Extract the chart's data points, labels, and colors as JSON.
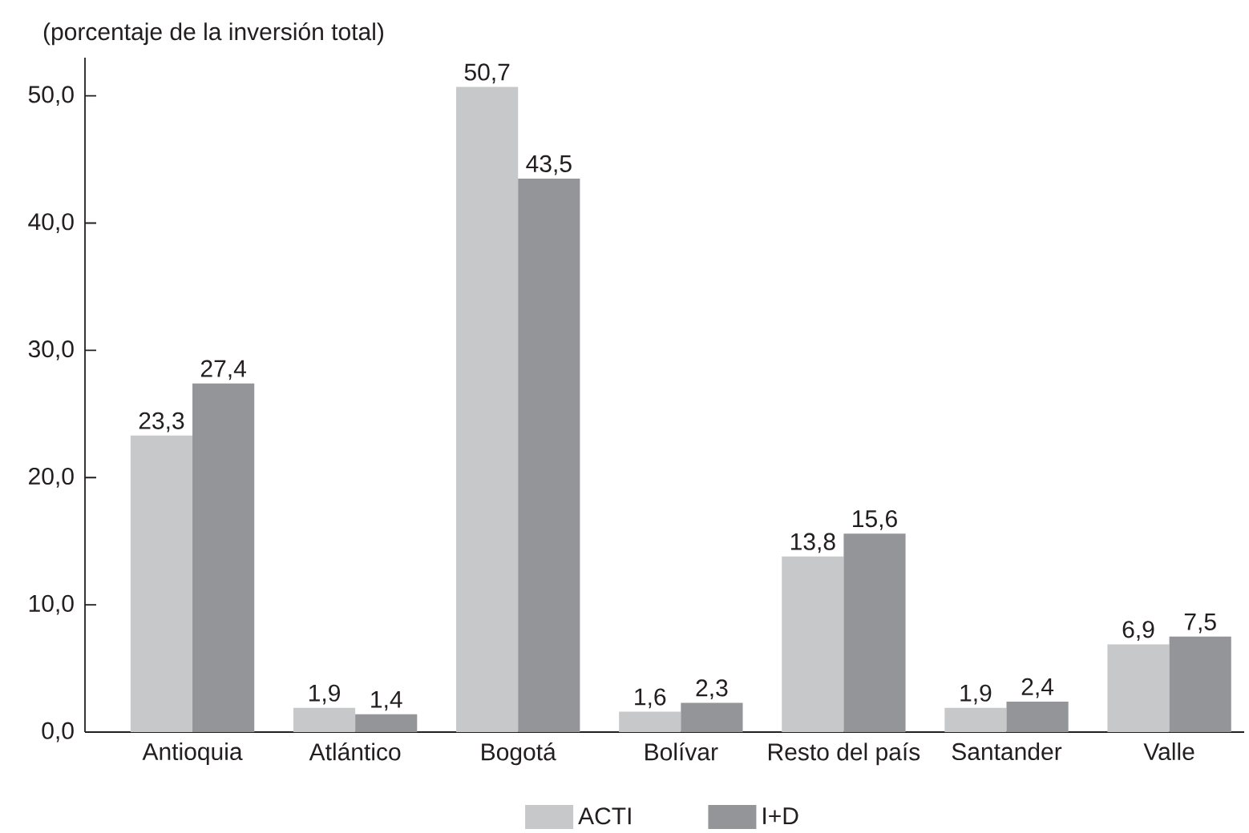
{
  "chart_data": {
    "type": "bar",
    "ylabel": "(porcentaje de la inversión total)",
    "categories": [
      "Antioquia",
      "Atlántico",
      "Bogotá",
      "Bolívar",
      "Resto del país",
      "Santander",
      "Valle"
    ],
    "series": [
      {
        "name": "ACTI",
        "color": "#c7c8ca",
        "values": [
          23.3,
          1.9,
          50.7,
          1.6,
          13.8,
          1.9,
          6.9
        ],
        "value_labels": [
          "23,3",
          "1,9",
          "50,7",
          "1,6",
          "13,8",
          "1,9",
          "6,9"
        ]
      },
      {
        "name": "I+D",
        "color": "#939598",
        "values": [
          27.4,
          1.4,
          43.5,
          2.3,
          15.6,
          2.4,
          7.5
        ],
        "value_labels": [
          "27,4",
          "1,4",
          "43,5",
          "2,3",
          "15,6",
          "2,4",
          "7,5"
        ]
      }
    ],
    "ylim": [
      0,
      53
    ],
    "yticks": [
      {
        "value": 0,
        "label": "0,0"
      },
      {
        "value": 10,
        "label": "10,0"
      },
      {
        "value": 20,
        "label": "20,0"
      },
      {
        "value": 30,
        "label": "30,0"
      },
      {
        "value": 40,
        "label": "40,0"
      },
      {
        "value": 50,
        "label": "50,0"
      }
    ],
    "legend": "bottom"
  }
}
